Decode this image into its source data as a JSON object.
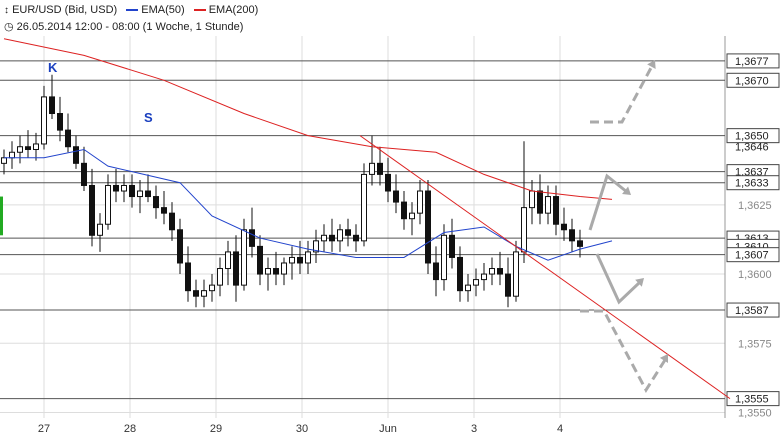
{
  "header": {
    "symbol_icon": "candlestick-icon",
    "instrument": "EUR/USD (Bid, USD)",
    "ema50_label": "EMA(50)",
    "ema200_label": "EMA(200)",
    "period_icon": "clock-icon",
    "period_text": "26.05.2014 12:00 - 08:00 (1 Woche, 1 Stunde)"
  },
  "colors": {
    "ema50": "#2244cc",
    "ema200": "#dd2222",
    "trendline": "#dd2222",
    "candle": "#111111",
    "arrow_gray": "#aaaaaa",
    "level_line": "#555555",
    "grid": "#dddddd",
    "label_box_border": "#444444",
    "first_candle": "#22aa22",
    "annotation_text": "#1a3fbf"
  },
  "chart_data": {
    "type": "candlestick",
    "grid": true,
    "ylim": [
      1.3548,
      1.3686
    ],
    "x_tick_labels": [
      "27",
      "28",
      "29",
      "30",
      "Jun",
      "3",
      "4"
    ],
    "y_tick_labels": [
      "1,3625",
      "1,3600",
      "1,3575",
      "1,3550"
    ],
    "y_ticks": [
      1.3625,
      1.36,
      1.3575,
      1.355
    ],
    "levels": [
      {
        "value": 1.3677,
        "label": "1,3677",
        "style": "line"
      },
      {
        "value": 1.367,
        "label": "1,3670",
        "style": "line"
      },
      {
        "value": 1.365,
        "label": "1,3650",
        "style": "line"
      },
      {
        "value": 1.3646,
        "label": "1,3646",
        "style": "label"
      },
      {
        "value": 1.3637,
        "label": "1,3637",
        "style": "line"
      },
      {
        "value": 1.3633,
        "label": "1,3633",
        "style": "line"
      },
      {
        "value": 1.3613,
        "label": "1,3613",
        "style": "line"
      },
      {
        "value": 1.361,
        "label": "1,3610",
        "style": "box"
      },
      {
        "value": 1.3607,
        "label": "1,3607",
        "style": "line"
      },
      {
        "value": 1.3587,
        "label": "1,3587",
        "style": "line"
      },
      {
        "value": 1.3555,
        "label": "1,3555",
        "style": "line"
      }
    ],
    "annotations": [
      {
        "text": "K",
        "x": 6,
        "y": 1.3673
      },
      {
        "text": "S",
        "x": 18,
        "y": 1.3655
      }
    ],
    "series": [
      {
        "name": "EMA(50)",
        "color": "#2244cc",
        "points": [
          [
            0,
            1.3642
          ],
          [
            5,
            1.3642
          ],
          [
            10,
            1.3645
          ],
          [
            13,
            1.3639
          ],
          [
            16,
            1.3637
          ],
          [
            22,
            1.3633
          ],
          [
            26,
            1.3621
          ],
          [
            32,
            1.3613
          ],
          [
            38,
            1.3609
          ],
          [
            44,
            1.3606
          ],
          [
            50,
            1.3606
          ],
          [
            55,
            1.3615
          ],
          [
            60,
            1.3617
          ],
          [
            64,
            1.361
          ],
          [
            68,
            1.3605
          ],
          [
            72,
            1.3609
          ],
          [
            76,
            1.3612
          ]
        ]
      },
      {
        "name": "EMA(200)",
        "color": "#dd2222",
        "points": [
          [
            0,
            1.3685
          ],
          [
            10,
            1.3679
          ],
          [
            20,
            1.367
          ],
          [
            30,
            1.3658
          ],
          [
            38,
            1.365
          ],
          [
            46,
            1.3646
          ],
          [
            54,
            1.3644
          ],
          [
            60,
            1.3636
          ],
          [
            66,
            1.363
          ],
          [
            72,
            1.3628
          ],
          [
            76,
            1.3627
          ]
        ]
      },
      {
        "name": "trendline",
        "color": "#dd2222",
        "points": [
          [
            47,
            1.365
          ],
          [
            98,
            1.3555
          ]
        ]
      }
    ],
    "candles": [
      [
        1.364,
        1.3645,
        1.3636,
        1.3642
      ],
      [
        1.3642,
        1.3648,
        1.3638,
        1.3644
      ],
      [
        1.3644,
        1.365,
        1.364,
        1.3646
      ],
      [
        1.3646,
        1.3652,
        1.3642,
        1.3645
      ],
      [
        1.3645,
        1.3651,
        1.3641,
        1.3647
      ],
      [
        1.3647,
        1.3668,
        1.3645,
        1.3664
      ],
      [
        1.3664,
        1.3672,
        1.3656,
        1.3658
      ],
      [
        1.3658,
        1.3664,
        1.3648,
        1.3652
      ],
      [
        1.3652,
        1.3658,
        1.3644,
        1.3646
      ],
      [
        1.3646,
        1.365,
        1.3638,
        1.364
      ],
      [
        1.364,
        1.3646,
        1.363,
        1.3632
      ],
      [
        1.3632,
        1.3638,
        1.361,
        1.3614
      ],
      [
        1.3614,
        1.3622,
        1.3608,
        1.3618
      ],
      [
        1.3618,
        1.3636,
        1.3616,
        1.3632
      ],
      [
        1.3632,
        1.3638,
        1.3626,
        1.363
      ],
      [
        1.363,
        1.3636,
        1.3626,
        1.3632
      ],
      [
        1.3632,
        1.3636,
        1.3624,
        1.3628
      ],
      [
        1.3628,
        1.3634,
        1.3622,
        1.363
      ],
      [
        1.363,
        1.3636,
        1.3626,
        1.3628
      ],
      [
        1.3628,
        1.3632,
        1.362,
        1.3624
      ],
      [
        1.3624,
        1.363,
        1.3618,
        1.3622
      ],
      [
        1.3622,
        1.3626,
        1.3612,
        1.3616
      ],
      [
        1.3616,
        1.362,
        1.36,
        1.3604
      ],
      [
        1.3604,
        1.361,
        1.359,
        1.3594
      ],
      [
        1.3594,
        1.3598,
        1.3588,
        1.3592
      ],
      [
        1.3592,
        1.3598,
        1.3588,
        1.3594
      ],
      [
        1.3594,
        1.36,
        1.359,
        1.3596
      ],
      [
        1.3596,
        1.3606,
        1.3592,
        1.3602
      ],
      [
        1.3602,
        1.3612,
        1.3596,
        1.3608
      ],
      [
        1.3608,
        1.3614,
        1.359,
        1.3596
      ],
      [
        1.3596,
        1.362,
        1.3594,
        1.3616
      ],
      [
        1.3616,
        1.3624,
        1.3606,
        1.361
      ],
      [
        1.361,
        1.3614,
        1.3596,
        1.36
      ],
      [
        1.36,
        1.3606,
        1.3594,
        1.3602
      ],
      [
        1.3602,
        1.3608,
        1.3596,
        1.36
      ],
      [
        1.36,
        1.3606,
        1.3596,
        1.3604
      ],
      [
        1.3604,
        1.361,
        1.3598,
        1.3606
      ],
      [
        1.3606,
        1.3612,
        1.36,
        1.3604
      ],
      [
        1.3604,
        1.3612,
        1.36,
        1.3608
      ],
      [
        1.3608,
        1.3616,
        1.3604,
        1.3612
      ],
      [
        1.3612,
        1.3618,
        1.3608,
        1.3614
      ],
      [
        1.3614,
        1.362,
        1.3608,
        1.3612
      ],
      [
        1.3612,
        1.3618,
        1.3608,
        1.3616
      ],
      [
        1.3616,
        1.362,
        1.361,
        1.3614
      ],
      [
        1.3614,
        1.3618,
        1.3608,
        1.3612
      ],
      [
        1.3612,
        1.364,
        1.361,
        1.3636
      ],
      [
        1.3636,
        1.365,
        1.3632,
        1.364
      ],
      [
        1.364,
        1.3646,
        1.3632,
        1.3636
      ],
      [
        1.3636,
        1.3642,
        1.3626,
        1.363
      ],
      [
        1.363,
        1.3636,
        1.3622,
        1.3626
      ],
      [
        1.3626,
        1.363,
        1.3616,
        1.362
      ],
      [
        1.362,
        1.3626,
        1.3614,
        1.3622
      ],
      [
        1.3622,
        1.3634,
        1.3618,
        1.363
      ],
      [
        1.363,
        1.3634,
        1.36,
        1.3604
      ],
      [
        1.3604,
        1.361,
        1.3592,
        1.3598
      ],
      [
        1.3598,
        1.3618,
        1.3594,
        1.3614
      ],
      [
        1.3614,
        1.362,
        1.3602,
        1.3606
      ],
      [
        1.3606,
        1.361,
        1.359,
        1.3594
      ],
      [
        1.3594,
        1.36,
        1.359,
        1.3596
      ],
      [
        1.3596,
        1.3602,
        1.3592,
        1.3598
      ],
      [
        1.3598,
        1.3604,
        1.3594,
        1.36
      ],
      [
        1.36,
        1.3606,
        1.3596,
        1.3602
      ],
      [
        1.3602,
        1.3608,
        1.3596,
        1.36
      ],
      [
        1.36,
        1.3606,
        1.3588,
        1.3592
      ],
      [
        1.3592,
        1.3612,
        1.359,
        1.3608
      ],
      [
        1.3608,
        1.3648,
        1.3604,
        1.3624
      ],
      [
        1.3624,
        1.3634,
        1.3618,
        1.363
      ],
      [
        1.363,
        1.3636,
        1.3618,
        1.3622
      ],
      [
        1.3622,
        1.3632,
        1.3618,
        1.3628
      ],
      [
        1.3628,
        1.3632,
        1.3614,
        1.3618
      ],
      [
        1.3618,
        1.3624,
        1.3612,
        1.3616
      ],
      [
        1.3616,
        1.362,
        1.3608,
        1.3612
      ],
      [
        1.3612,
        1.3616,
        1.3606,
        1.361
      ]
    ]
  }
}
